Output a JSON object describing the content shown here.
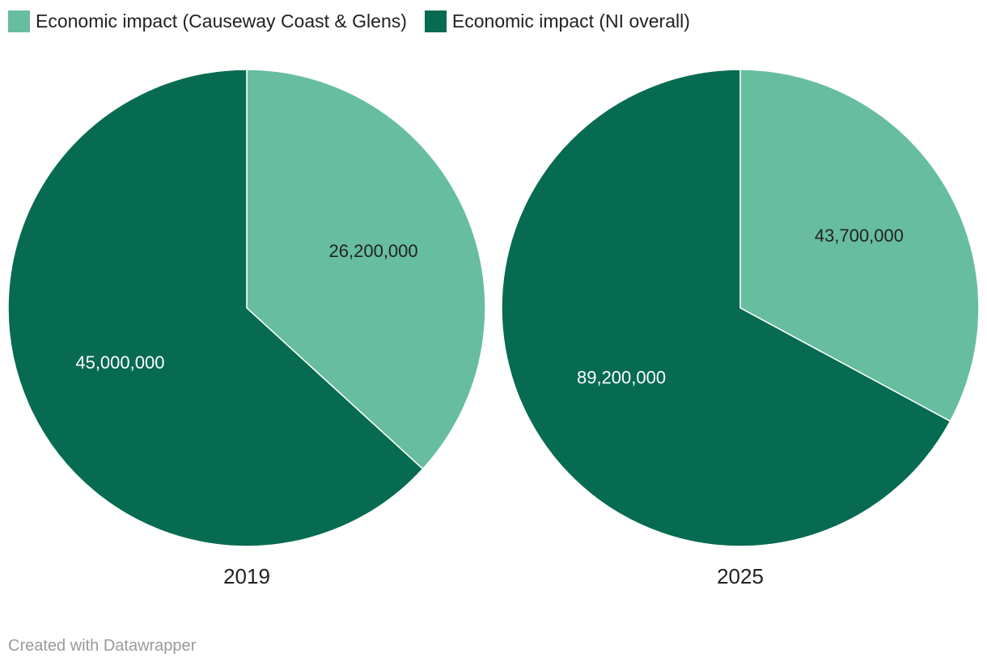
{
  "colors": {
    "causeway": "#67bd9f",
    "ni": "#076b52",
    "label_on_light": "#222222",
    "label_on_dark": "#ffffff",
    "footer": "#9a9a9a"
  },
  "legend": {
    "items": [
      {
        "label": "Economic impact (Causeway Coast & Glens)",
        "color": "#67bd9f"
      },
      {
        "label": "Economic impact (NI overall)",
        "color": "#076b52"
      }
    ]
  },
  "chart_data": {
    "type": "pie",
    "series_names": [
      "Economic impact (Causeway Coast & Glens)",
      "Economic impact (NI overall)"
    ],
    "pies": [
      {
        "title": "2019",
        "slices": [
          {
            "name": "Economic impact (Causeway Coast & Glens)",
            "value": 26200000,
            "label": "26,200,000"
          },
          {
            "name": "Economic impact (NI overall)",
            "value": 45000000,
            "label": "45,000,000"
          }
        ]
      },
      {
        "title": "2025",
        "slices": [
          {
            "name": "Economic impact (Causeway Coast & Glens)",
            "value": 43700000,
            "label": "43,700,000"
          },
          {
            "name": "Economic impact (NI overall)",
            "value": 89200000,
            "label": "89,200,000"
          }
        ]
      }
    ]
  },
  "footer": {
    "credit": "Created with Datawrapper"
  }
}
